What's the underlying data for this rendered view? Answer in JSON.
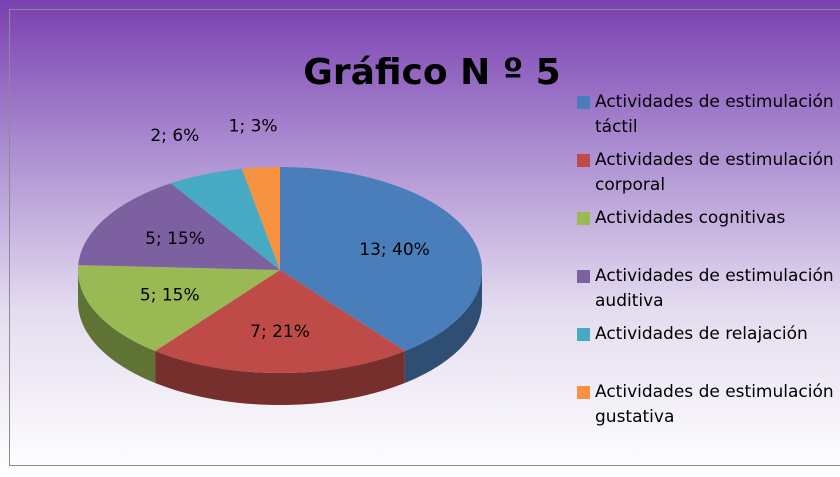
{
  "chart_data": {
    "type": "pie3d",
    "title": "Gráfico N º 5",
    "categories": [
      "Actividades de estimulación táctil",
      "Actividades de estimulación corporal",
      "Actividades cognitivas",
      "Actividades de estimulación auditiva",
      "Actividades de relajación",
      "Actividades de estimulación gustativa"
    ],
    "values": [
      13,
      7,
      5,
      5,
      2,
      1
    ],
    "value_labels": [
      "13; 40%",
      "7; 21%",
      "5; 15%",
      "5; 15%",
      "2; 6%",
      "1; 3%"
    ],
    "colors": [
      "#4a7ebb",
      "#be4b48",
      "#98b954",
      "#7d60a0",
      "#46aac5",
      "#f69240"
    ],
    "legend": "right"
  }
}
